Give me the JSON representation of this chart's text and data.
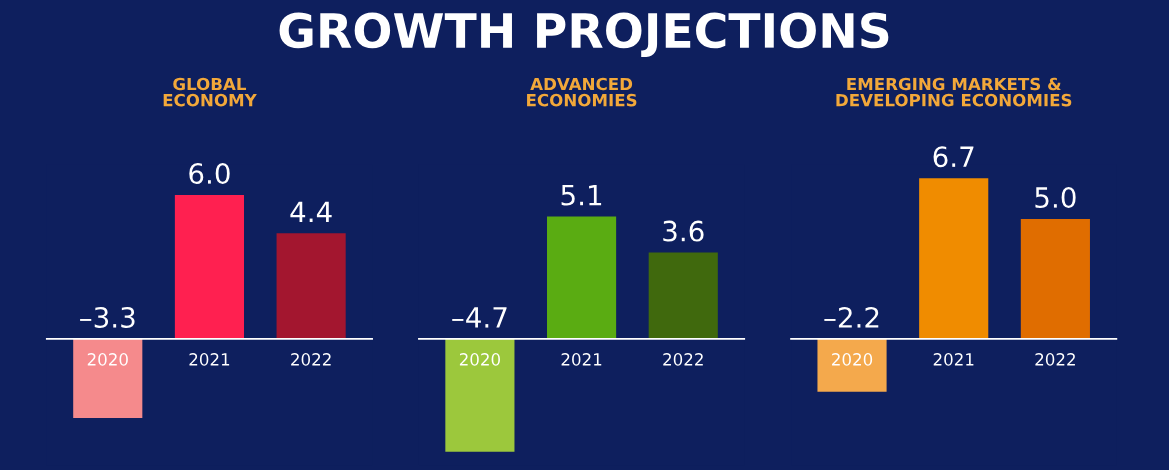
{
  "chart_data": [
    {
      "type": "bar",
      "title": "GLOBAL\nECONOMY",
      "annotations": [
        "GROWTH PROJECTIONS"
      ],
      "categories": [
        "2020",
        "2021",
        "2022"
      ],
      "values": [
        -3.3,
        6.0,
        4.4
      ],
      "colors": [
        "#f58a8c",
        "#ff2050",
        "#a3162f"
      ],
      "value_labels": [
        "–3.3",
        "6.0",
        "4.4"
      ]
    },
    {
      "type": "bar",
      "title": "ADVANCED\nECONOMIES",
      "categories": [
        "2020",
        "2021",
        "2022"
      ],
      "values": [
        -4.7,
        5.1,
        3.6
      ],
      "colors": [
        "#9cc83c",
        "#5aac12",
        "#40690d"
      ],
      "value_labels": [
        "–4.7",
        "5.1",
        "3.6"
      ]
    },
    {
      "type": "bar",
      "title": "EMERGING MARKETS &\nDEVELOPING ECONOMIES",
      "categories": [
        "2020",
        "2021",
        "2022"
      ],
      "values": [
        -2.2,
        6.7,
        5.0
      ],
      "colors": [
        "#f4a94c",
        "#f08c00",
        "#e06d00"
      ],
      "value_labels": [
        "–2.2",
        "6.7",
        "5.0"
      ]
    }
  ]
}
